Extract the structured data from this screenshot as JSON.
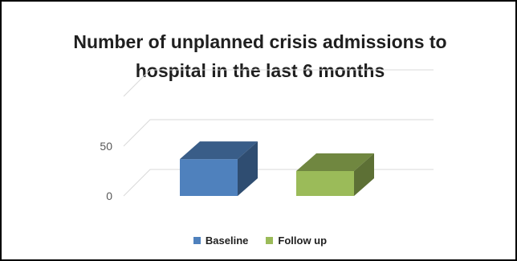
{
  "chart_data": {
    "type": "bar",
    "title": "Number of unplanned crisis admissions to hospital in the last 6 months",
    "title_lines": [
      "Number of unplanned crisis admissions to",
      "hospital in the last 6 months"
    ],
    "xlabel": "",
    "ylabel": "",
    "categories": [
      ""
    ],
    "series": [
      {
        "name": "Baseline",
        "values": [
          37
        ],
        "color": "#4f81bd"
      },
      {
        "name": "Follow up",
        "values": [
          25
        ],
        "color": "#9bbb59"
      }
    ],
    "ylim": [
      0,
      100
    ],
    "yticks": [
      "0",
      "50"
    ],
    "grid": true,
    "legend": "bottom",
    "style": "3d-column"
  }
}
